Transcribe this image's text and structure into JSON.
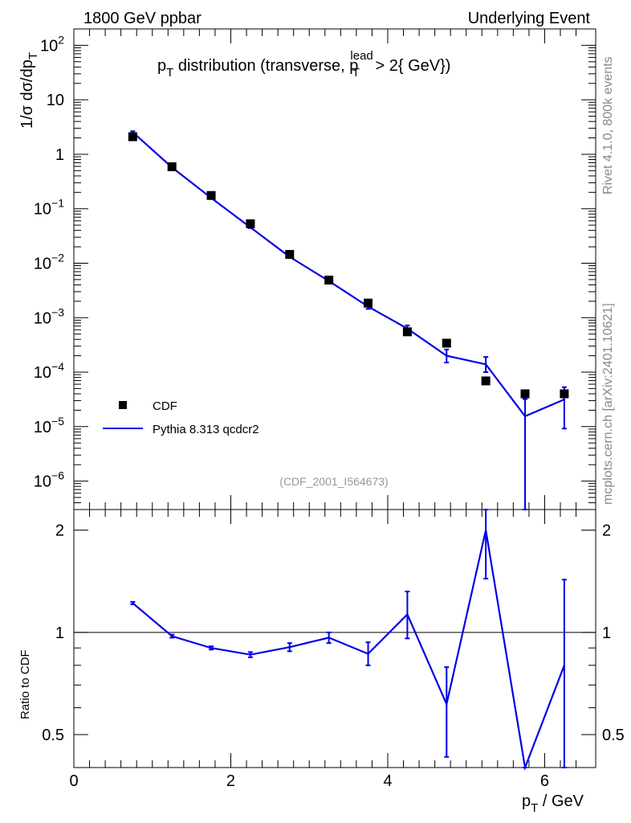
{
  "header": {
    "left": "1800 GeV ppbar",
    "right": "Underlying Event"
  },
  "side_labels": {
    "top": "Rivet 4.1.0,  800k events",
    "bottom": "mcplots.cern.ch [arXiv:2401.10621]"
  },
  "reference_label": "(CDF_2001_I564673)",
  "title": {
    "p": "p",
    "sub_t": "T",
    "text1": " distribution (transverse, p",
    "sup_lead": "lead",
    "sub_t2": "T",
    "text2": " > 2{ GeV})"
  },
  "ylabel_main": {
    "pre": "1/σ  dσ/dp",
    "sub": "T"
  },
  "ylabel_ratio": "Ratio to CDF",
  "xlabel": {
    "p": "p",
    "sub": "T",
    "post": " / GeV"
  },
  "legend": [
    {
      "label": "CDF",
      "marker": "square",
      "color": "#000000"
    },
    {
      "label": "Pythia 8.313 qcdcr2",
      "marker": "line",
      "color": "#0000e6"
    }
  ],
  "colors": {
    "data": "#000000",
    "mc": "#0000e6",
    "side_text": "#888888"
  },
  "chart_data": [
    {
      "type": "scatter",
      "panel": "main",
      "title": "p_T distribution (transverse, p_T^lead > 2{ GeV})",
      "xlabel": "p_T / GeV",
      "ylabel": "1/σ dσ/dp_T",
      "xlim": [
        0,
        6.65
      ],
      "ylim": [
        3e-07,
        200
      ],
      "yscale": "log",
      "x_ticks": [
        0,
        2,
        4,
        6
      ],
      "y_ticks": [
        {
          "value": 1e-06,
          "base": "10",
          "exp": "−6"
        },
        {
          "value": 1e-05,
          "base": "10",
          "exp": "−5"
        },
        {
          "value": 0.0001,
          "base": "10",
          "exp": "−4"
        },
        {
          "value": 0.001,
          "base": "10",
          "exp": "−3"
        },
        {
          "value": 0.01,
          "base": "10",
          "exp": "−2"
        },
        {
          "value": 0.1,
          "base": "10",
          "exp": "−1"
        },
        {
          "value": 1,
          "base": "1",
          "exp": ""
        },
        {
          "value": 10,
          "base": "10",
          "exp": ""
        },
        {
          "value": 100,
          "base": "10",
          "exp": "2"
        }
      ],
      "legend_position": "bottom-left",
      "series": [
        {
          "name": "CDF",
          "style": "markers",
          "x": [
            0.75,
            1.25,
            1.75,
            2.25,
            2.75,
            3.25,
            3.75,
            4.25,
            4.75,
            5.25,
            5.75,
            6.25
          ],
          "y": [
            2.1,
            0.59,
            0.175,
            0.053,
            0.0145,
            0.0049,
            0.00185,
            0.00055,
            0.00034,
            6.9e-05,
            4e-05,
            4e-05
          ]
        },
        {
          "name": "Pythia 8.313 qcdcr2",
          "style": "line",
          "x": [
            0.75,
            1.25,
            1.75,
            2.25,
            2.75,
            3.25,
            3.75,
            4.25,
            4.75,
            5.25,
            5.75,
            6.25
          ],
          "y": [
            2.55,
            0.575,
            0.158,
            0.0455,
            0.0131,
            0.0047,
            0.0016,
            0.00063,
            0.0002,
            0.000139,
            1.55e-05,
            3.15e-05
          ],
          "y_low": [
            2.45,
            0.56,
            0.154,
            0.044,
            0.0126,
            0.0044,
            0.00145,
            0.00055,
            0.00015,
            0.0001,
            3e-07,
            9.2e-06
          ],
          "y_high": [
            2.65,
            0.59,
            0.162,
            0.047,
            0.0136,
            0.005,
            0.00175,
            0.00072,
            0.00026,
            0.00019,
            3.2e-05,
            5.3e-05
          ]
        }
      ]
    },
    {
      "type": "line",
      "panel": "ratio",
      "ylabel": "Ratio to CDF",
      "xlabel": "p_T / GeV",
      "xlim": [
        0,
        6.65
      ],
      "ylim": [
        0.4,
        2.3
      ],
      "yscale": "log",
      "y_ticks": [
        0.5,
        1,
        2
      ],
      "y_tick_labels": [
        "0.5",
        "1",
        "2"
      ],
      "reference_line": 1,
      "series": [
        {
          "name": "Pythia 8.313 qcdcr2",
          "x": [
            0.75,
            1.25,
            1.75,
            2.25,
            2.75,
            3.25,
            3.75,
            4.25,
            4.75,
            5.25,
            5.75,
            6.25
          ],
          "y": [
            1.22,
            0.975,
            0.9,
            0.86,
            0.905,
            0.965,
            0.865,
            1.13,
            0.615,
            2.0,
            0.39,
            0.8
          ],
          "y_low": [
            1.21,
            0.965,
            0.89,
            0.845,
            0.88,
            0.93,
            0.8,
            0.96,
            0.43,
            1.44,
            0.39,
            0.39
          ],
          "y_high": [
            1.23,
            0.985,
            0.91,
            0.875,
            0.93,
            1.0,
            0.935,
            1.32,
            0.79,
            2.35,
            0.39,
            1.43
          ]
        }
      ]
    }
  ]
}
